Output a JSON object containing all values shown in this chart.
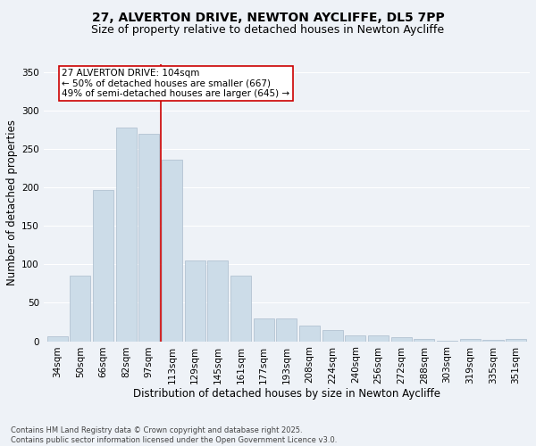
{
  "title_line1": "27, ALVERTON DRIVE, NEWTON AYCLIFFE, DL5 7PP",
  "title_line2": "Size of property relative to detached houses in Newton Aycliffe",
  "xlabel": "Distribution of detached houses by size in Newton Aycliffe",
  "ylabel": "Number of detached properties",
  "footnote": "Contains HM Land Registry data © Crown copyright and database right 2025.\nContains public sector information licensed under the Open Government Licence v3.0.",
  "categories": [
    "34sqm",
    "50sqm",
    "66sqm",
    "82sqm",
    "97sqm",
    "113sqm",
    "129sqm",
    "145sqm",
    "161sqm",
    "177sqm",
    "193sqm",
    "208sqm",
    "224sqm",
    "240sqm",
    "256sqm",
    "272sqm",
    "288sqm",
    "303sqm",
    "319sqm",
    "335sqm",
    "351sqm"
  ],
  "values": [
    6,
    85,
    196,
    278,
    270,
    236,
    105,
    105,
    85,
    29,
    29,
    20,
    15,
    8,
    7,
    5,
    3,
    1,
    3,
    2,
    3
  ],
  "bar_color": "#ccdce8",
  "bar_edge_color": "#aabbcc",
  "ref_line_x": 4.5,
  "ref_line_color": "#cc0000",
  "annotation_text": "27 ALVERTON DRIVE: 104sqm\n← 50% of detached houses are smaller (667)\n49% of semi-detached houses are larger (645) →",
  "annotation_box_color": "#cc0000",
  "ylim": [
    0,
    360
  ],
  "yticks": [
    0,
    50,
    100,
    150,
    200,
    250,
    300,
    350
  ],
  "bg_color": "#eef2f7",
  "grid_color": "#ffffff",
  "title_fontsize": 10,
  "subtitle_fontsize": 9,
  "axis_label_fontsize": 8.5,
  "tick_fontsize": 7.5,
  "annot_fontsize": 7.5
}
